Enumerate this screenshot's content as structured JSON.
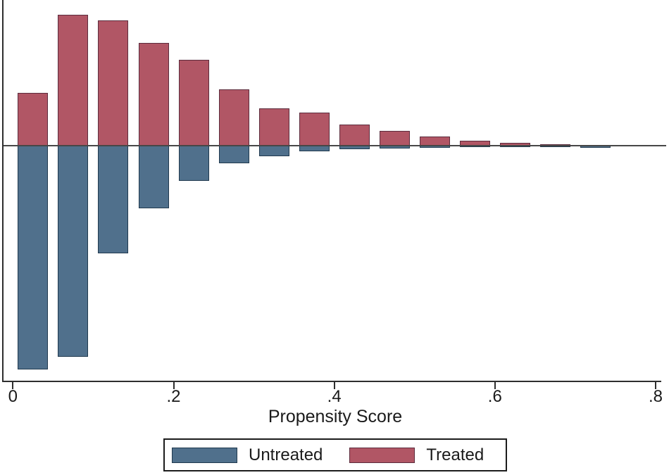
{
  "chart_data": {
    "type": "bar",
    "variant": "diverging-histogram",
    "title": "",
    "xlabel": "Propensity Score",
    "ylabel": "",
    "xlim": [
      0,
      0.8
    ],
    "bin_width": 0.05,
    "bin_centers": [
      0.025,
      0.075,
      0.125,
      0.175,
      0.225,
      0.275,
      0.325,
      0.375,
      0.425,
      0.475,
      0.525,
      0.575,
      0.625,
      0.675,
      0.725
    ],
    "x_ticks": [
      {
        "value": 0.0,
        "label": "0"
      },
      {
        "value": 0.2,
        "label": ".2"
      },
      {
        "value": 0.4,
        "label": ".4"
      },
      {
        "value": 0.6,
        "label": ".6"
      },
      {
        "value": 0.8,
        "label": ".8"
      }
    ],
    "series": [
      {
        "name": "Treated",
        "direction": "up",
        "color": "#b15665",
        "border_color": "#5c2c3d",
        "values": [
          0.078,
          0.194,
          0.185,
          0.152,
          0.127,
          0.083,
          0.055,
          0.049,
          0.031,
          0.022,
          0.014,
          0.007,
          0.004,
          0.002,
          0.0
        ]
      },
      {
        "name": "Untreated",
        "direction": "down",
        "color": "#50708c",
        "border_color": "#20394e",
        "values": [
          0.331,
          0.313,
          0.159,
          0.093,
          0.052,
          0.026,
          0.016,
          0.008,
          0.005,
          0.004,
          0.003,
          0.002,
          0.002,
          0.002,
          0.003
        ]
      }
    ],
    "legend": {
      "position": "bottom",
      "items": [
        {
          "label": "Untreated",
          "color": "#50708c",
          "border_color": "#20394e"
        },
        {
          "label": "Treated",
          "color": "#b15665",
          "border_color": "#5c2c3d"
        }
      ]
    },
    "baseline": {
      "value": 0,
      "shown_as": "horizontal line"
    },
    "grid": false
  },
  "colors": {
    "background": "#ffffff",
    "axis": "#2e2e2e",
    "zero_line": "#474747",
    "text": "#1a1a1a"
  }
}
